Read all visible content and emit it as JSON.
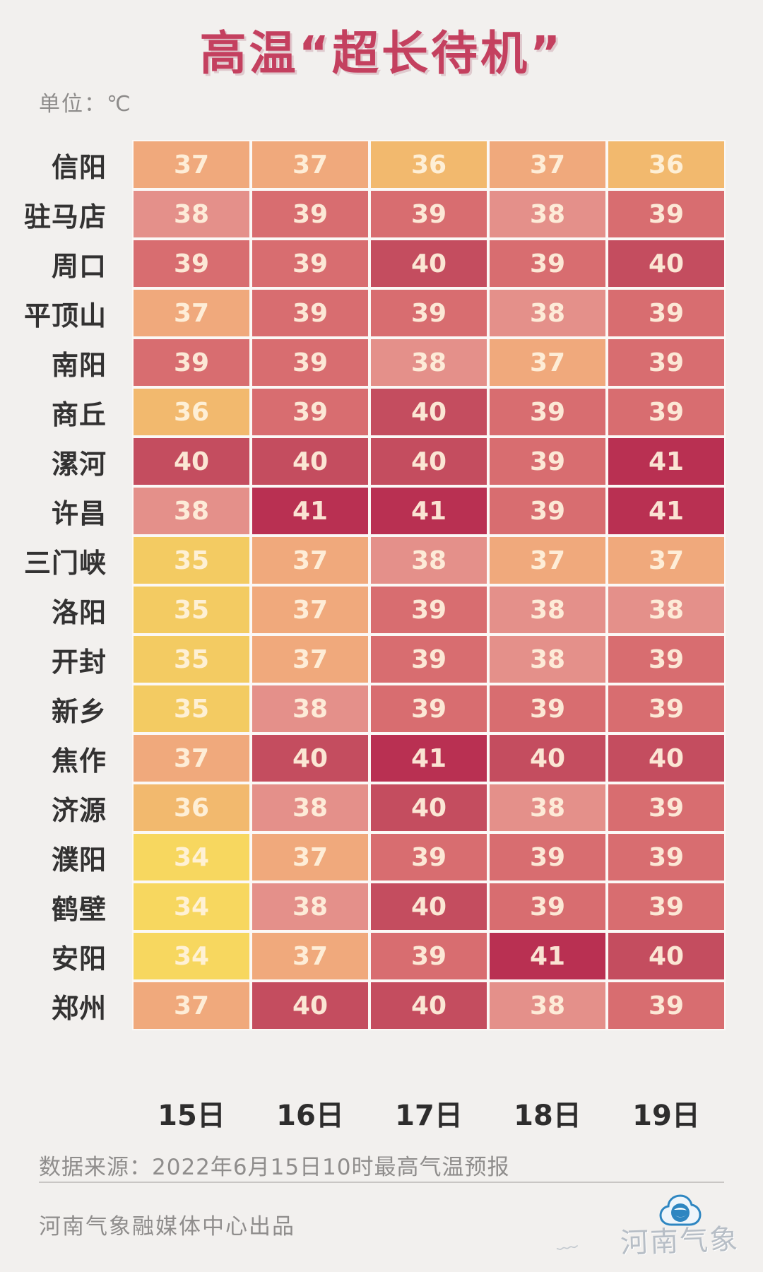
{
  "title": "高温“超长待机”",
  "unit_label": "单位：℃",
  "chart_data": {
    "type": "heatmap",
    "title": "高温“超长待机”",
    "unit": "℃",
    "columns": [
      "15日",
      "16日",
      "17日",
      "18日",
      "19日"
    ],
    "rows": [
      {
        "city": "信阳",
        "temps": [
          37,
          37,
          36,
          37,
          36
        ]
      },
      {
        "city": "驻马店",
        "temps": [
          38,
          39,
          39,
          38,
          39
        ]
      },
      {
        "city": "周口",
        "temps": [
          39,
          39,
          40,
          39,
          40
        ]
      },
      {
        "city": "平顶山",
        "temps": [
          37,
          39,
          39,
          38,
          39
        ]
      },
      {
        "city": "南阳",
        "temps": [
          39,
          39,
          38,
          37,
          39
        ]
      },
      {
        "city": "商丘",
        "temps": [
          36,
          39,
          40,
          39,
          39
        ]
      },
      {
        "city": "漯河",
        "temps": [
          40,
          40,
          40,
          39,
          41
        ]
      },
      {
        "city": "许昌",
        "temps": [
          38,
          41,
          41,
          39,
          41
        ]
      },
      {
        "city": "三门峡",
        "temps": [
          35,
          37,
          38,
          37,
          37
        ]
      },
      {
        "city": "洛阳",
        "temps": [
          35,
          37,
          39,
          38,
          38
        ]
      },
      {
        "city": "开封",
        "temps": [
          35,
          37,
          39,
          38,
          39
        ]
      },
      {
        "city": "新乡",
        "temps": [
          35,
          38,
          39,
          39,
          39
        ]
      },
      {
        "city": "焦作",
        "temps": [
          37,
          40,
          41,
          40,
          40
        ]
      },
      {
        "city": "济源",
        "temps": [
          36,
          38,
          40,
          38,
          39
        ]
      },
      {
        "city": "濮阳",
        "temps": [
          34,
          37,
          39,
          39,
          39
        ]
      },
      {
        "city": "鹤壁",
        "temps": [
          34,
          38,
          40,
          39,
          39
        ]
      },
      {
        "city": "安阳",
        "temps": [
          34,
          37,
          39,
          41,
          40
        ]
      },
      {
        "city": "郑州",
        "temps": [
          37,
          40,
          40,
          38,
          39
        ]
      }
    ],
    "palette": {
      "34": "#f7d75f",
      "35": "#f3cb62",
      "36": "#f2b96e",
      "37": "#f0a97c",
      "38": "#e4908a",
      "39": "#d86d70",
      "40": "#c44d5f",
      "41": "#b93052"
    },
    "value_range": [
      34,
      41
    ],
    "legend_position": "none",
    "grid": false
  },
  "colors": {
    "background": "#f2f0ee",
    "title_text": "#c4405f",
    "cell_border": "#fbf8f6",
    "cell_value_text": "#fff3de",
    "label_text": "#333232",
    "muted_text": "#8f8d8c",
    "brand_text": "#b7bec6",
    "brand_cloud_blue": "#2e86c1"
  },
  "footer": {
    "source": "数据来源：2022年6月15日10时最高气温预报",
    "producer": "河南气象融媒体中心出品",
    "logo_text": "河南气象"
  }
}
